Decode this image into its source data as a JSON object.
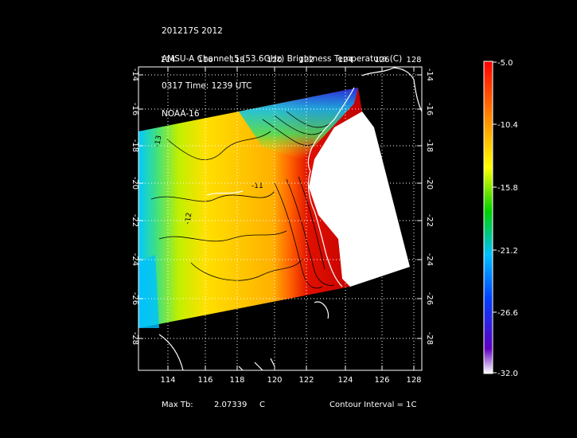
{
  "title": {
    "lines": [
      "201217S 2012",
      "AMSU-A Channel 5 (53.6GHz) Brightness Temperature (C)",
      "0317 Time: 1239 UTC",
      "NOAA-16"
    ]
  },
  "map": {
    "lon_ticks": [
      "114",
      "116",
      "118",
      "120",
      "122",
      "124",
      "126",
      "128"
    ],
    "lat_ticks": [
      "-14",
      "-16",
      "-18",
      "-20",
      "-22",
      "-24",
      "-26",
      "-28"
    ],
    "grid": true,
    "contour_labels": [
      "-13",
      "-12",
      "-11"
    ]
  },
  "colorbar": {
    "labels": [
      "-5.0",
      "-10.4",
      "-15.8",
      "-21.2",
      "-26.6",
      "-32.0"
    ],
    "colors": [
      "#ff0000",
      "#ff8000",
      "#ffff00",
      "#00d000",
      "#00c0ff",
      "#0040ff",
      "#6000c0",
      "#ffffff"
    ]
  },
  "footer": {
    "max_tb_label": "Max Tb:",
    "max_tb_value": "2.07339",
    "max_tb_unit": "C",
    "contour_interval": "Contour Interval = 1C"
  }
}
